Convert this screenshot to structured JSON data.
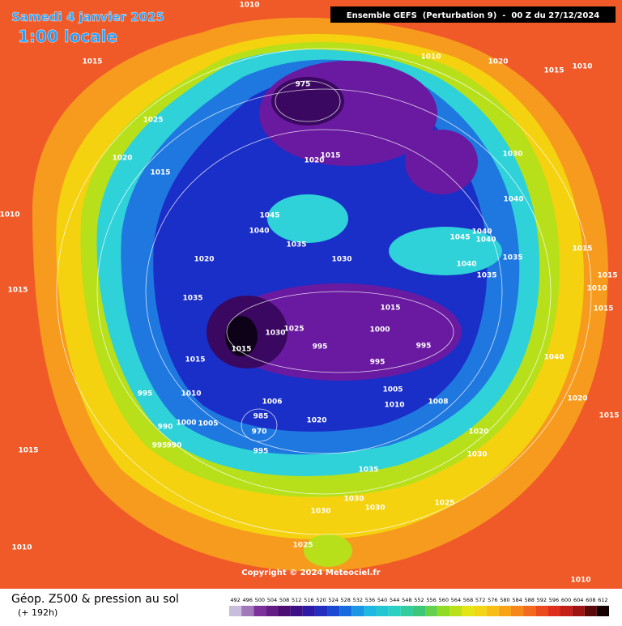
{
  "header": {
    "date": "Samedi 4 janvier 2025",
    "local_time": "1:00 locale",
    "run": "Ensemble GEFS  (Perturbation 9)  -  00 Z du 27/12/2024"
  },
  "copyright": "Copyright © 2024 Meteociel.fr",
  "footer": {
    "title": "Géop. Z500 & pression au sol",
    "lead": "(+ 192h)"
  },
  "colorbar": [
    492,
    496,
    500,
    504,
    508,
    512,
    516,
    520,
    524,
    528,
    532,
    536,
    540,
    544,
    548,
    552,
    556,
    560,
    564,
    568,
    572,
    576,
    580,
    584,
    588,
    592,
    596,
    600,
    604,
    608,
    612
  ],
  "pressure_labels": [
    "1010",
    "1015",
    "1025",
    "1020",
    "1015",
    "1010",
    "1015",
    "1020",
    "1040",
    "1045",
    "1035",
    "1030",
    "1035",
    "975",
    "1015",
    "1020",
    "1010",
    "1020",
    "1015",
    "1010",
    "1030",
    "1040",
    "1045",
    "1040",
    "1040",
    "1040",
    "1035",
    "1035",
    "1015",
    "1015",
    "1010",
    "1015",
    "1015",
    "1000",
    "995",
    "995",
    "995",
    "1025",
    "1030",
    "1015",
    "1015",
    "1010",
    "995",
    "1005",
    "1010",
    "1008",
    "1006",
    "1000",
    "1005",
    "990",
    "995",
    "990",
    "985",
    "970",
    "995",
    "1020",
    "1020",
    "1030",
    "1040",
    "1020",
    "1015",
    "1015",
    "1035",
    "1030",
    "1030",
    "1030",
    "1025",
    "1025",
    "1010",
    "1010"
  ]
}
